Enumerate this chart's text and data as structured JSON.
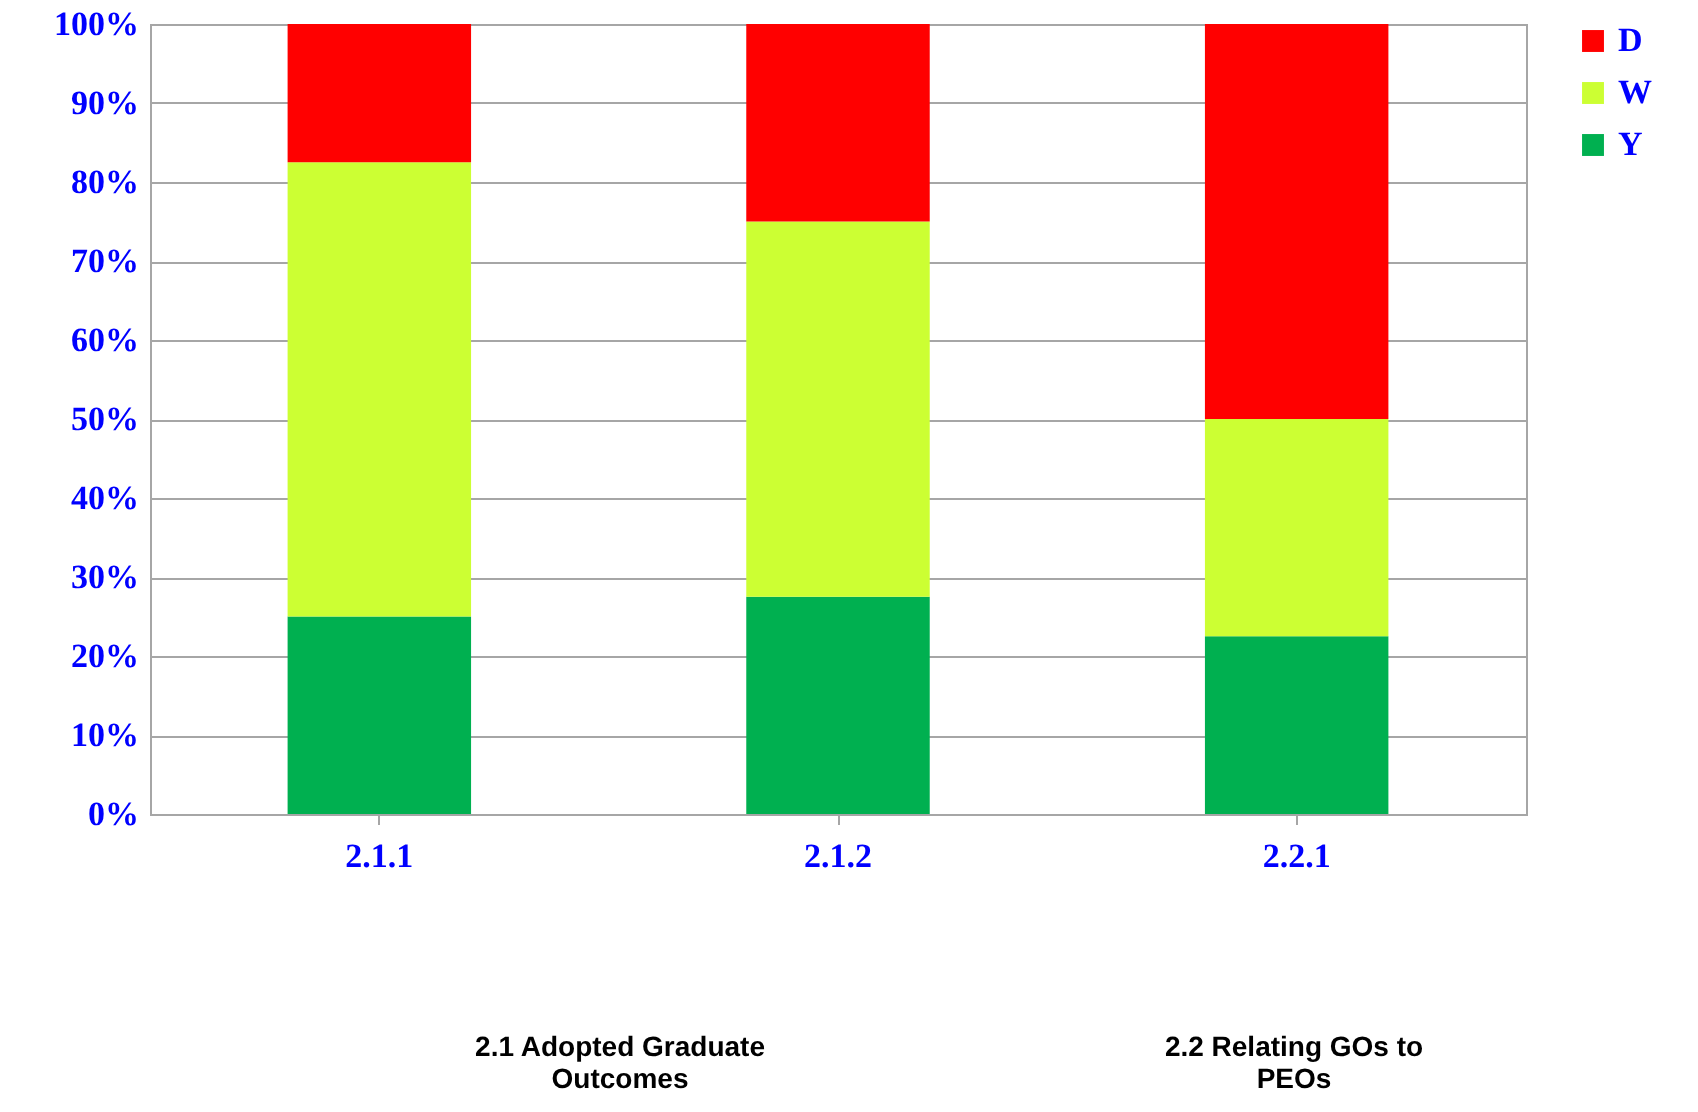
{
  "chart_data": {
    "type": "bar",
    "stacked": true,
    "categories": [
      "2.1.1",
      "2.1.2",
      "2.2.1"
    ],
    "series": [
      {
        "name": "Y",
        "color": "#00b050",
        "values": [
          25,
          27.5,
          22.5
        ]
      },
      {
        "name": "W",
        "color": "#ccff33",
        "values": [
          57.5,
          47.5,
          27.5
        ]
      },
      {
        "name": "D",
        "color": "#ff0000",
        "values": [
          17.5,
          25,
          50
        ]
      }
    ],
    "ylim": [
      0,
      100
    ],
    "yticks": [
      {
        "value": 0,
        "label": "0%"
      },
      {
        "value": 10,
        "label": "10%"
      },
      {
        "value": 20,
        "label": "20%"
      },
      {
        "value": 30,
        "label": "30%"
      },
      {
        "value": 40,
        "label": "40%"
      },
      {
        "value": 50,
        "label": "50%"
      },
      {
        "value": 60,
        "label": "60%"
      },
      {
        "value": 70,
        "label": "70%"
      },
      {
        "value": 80,
        "label": "80%"
      },
      {
        "value": 90,
        "label": "90%"
      },
      {
        "value": 100,
        "label": "100%"
      }
    ],
    "grid": "y",
    "legend": "right",
    "annotations": [
      "2.1 Adopted Graduate\nOutcomes",
      "2.2 Relating GOs to\nPEOs"
    ]
  }
}
